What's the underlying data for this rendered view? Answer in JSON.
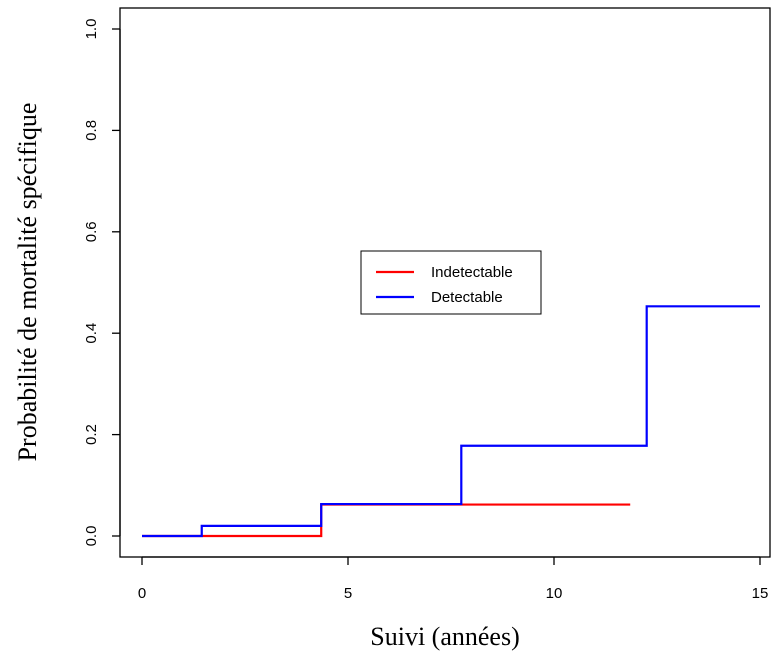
{
  "chart_data": {
    "type": "line",
    "step": true,
    "title": "",
    "xlabel": "Suivi (années)",
    "ylabel": "Probabilité de mortalité spécifique",
    "xlim": [
      0,
      15
    ],
    "ylim": [
      0,
      1
    ],
    "x_ticks": [
      "0",
      "5",
      "10",
      "15"
    ],
    "y_ticks": [
      "0.0",
      "0.2",
      "0.4",
      "0.6",
      "0.8",
      "1.0"
    ],
    "grid": false,
    "legend_position": "center",
    "series": [
      {
        "name": "Indetectable",
        "color": "#ff0000",
        "x": [
          0,
          4.35,
          11.85
        ],
        "y": [
          0,
          0.062,
          0.062
        ]
      },
      {
        "name": "Detectable",
        "color": "#0000ff",
        "x": [
          0,
          1.45,
          4.35,
          7.75,
          12.25,
          15.0
        ],
        "y": [
          0,
          0.02,
          0.063,
          0.178,
          0.453,
          0.453
        ]
      }
    ]
  }
}
